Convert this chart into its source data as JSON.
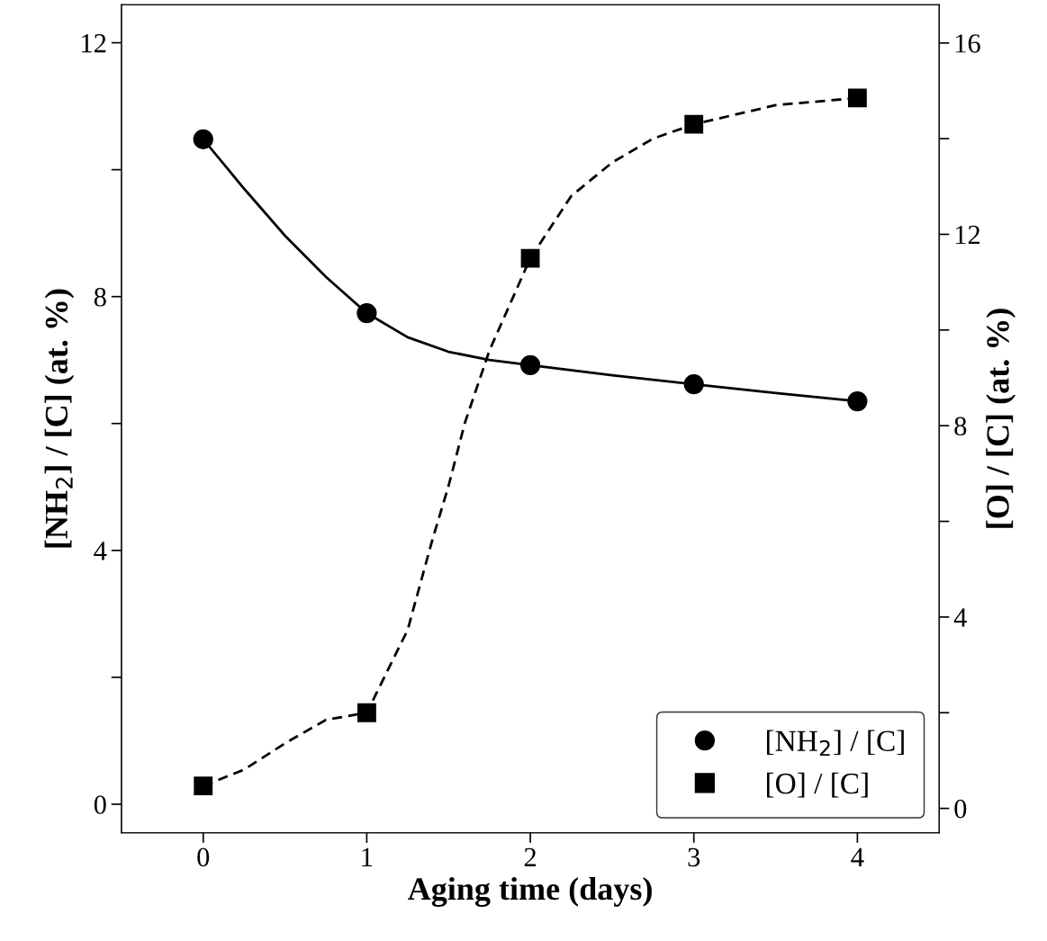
{
  "chart_data": {
    "type": "scatter",
    "xlabel": "Aging time (days)",
    "ylabel": "[NH$_{2}$] / [C] (at. %)",
    "y2label": "[O] / [C] (at. %)",
    "x": [
      0,
      1,
      2,
      3,
      4
    ],
    "xlim": [
      -0.5,
      4.5
    ],
    "xticks": [
      0,
      1,
      2,
      3,
      4
    ],
    "ylim": [
      -0.45,
      12.6
    ],
    "yticks": [
      0,
      {
        "value": 2,
        "label": null
      },
      4,
      {
        "value": 6,
        "label": null
      },
      8,
      {
        "value": 10,
        "label": null
      },
      12
    ],
    "y2lim": [
      -0.51,
      16.8
    ],
    "y2ticks": [
      0,
      {
        "value": 2,
        "label": null
      },
      4,
      {
        "value": 6,
        "label": null
      },
      8,
      {
        "value": 10,
        "label": null
      },
      12,
      {
        "value": 14,
        "label": null
      },
      16
    ],
    "series": [
      {
        "type": "line",
        "color": "#000000",
        "line_style": "solid",
        "x": [
          0,
          0.25,
          0.5,
          0.75,
          1,
          1.25,
          1.5,
          1.75,
          2,
          2.5,
          3,
          3.5,
          4
        ],
        "values": [
          10.48,
          9.7,
          8.96,
          8.31,
          7.74,
          7.36,
          7.13,
          7.0,
          6.92,
          6.76,
          6.62,
          6.48,
          6.35
        ]
      },
      {
        "type": "line",
        "color": "#000000",
        "line_style": "dashed",
        "axis": "y2",
        "x": [
          0,
          0.25,
          0.5,
          0.75,
          1,
          1.25,
          1.4,
          1.5,
          1.6,
          1.75,
          2,
          2.25,
          2.5,
          2.75,
          3,
          3.5,
          4
        ],
        "values": [
          0.47,
          0.81,
          1.36,
          1.85,
          2.0,
          3.73,
          5.6,
          6.74,
          8.06,
          9.57,
          11.5,
          12.8,
          13.5,
          14.0,
          14.3,
          14.7,
          14.85
        ]
      },
      {
        "name": "[NH$_{2}$] / [C]",
        "color": "#000000",
        "marker": "circle",
        "values": [
          10.48,
          7.74,
          6.92,
          6.62,
          6.35
        ]
      },
      {
        "name": "[O] / [C]",
        "color": "#000000",
        "marker": "square",
        "axis": "y2",
        "values": [
          0.47,
          2.0,
          11.5,
          14.3,
          14.85
        ]
      }
    ],
    "grid": false,
    "legend": "bottom right"
  }
}
